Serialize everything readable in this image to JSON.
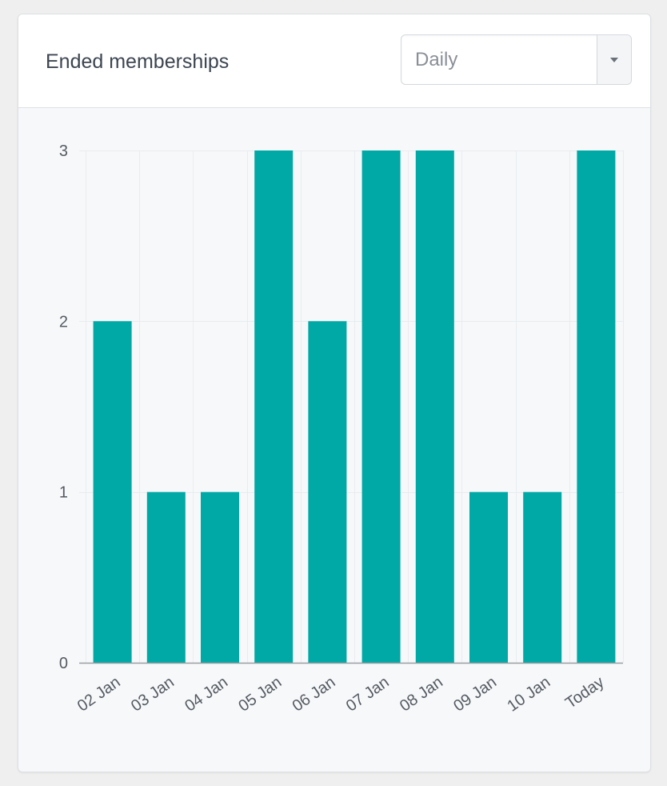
{
  "card": {
    "title": "Ended memberships",
    "period_select": {
      "value": "Daily"
    }
  },
  "colors": {
    "bar": "#00a9a5",
    "grid": "#e9ecef",
    "axis": "#9a9ea3"
  },
  "chart_data": {
    "type": "bar",
    "title": "",
    "xlabel": "",
    "ylabel": "",
    "categories": [
      "02 Jan",
      "03 Jan",
      "04 Jan",
      "05 Jan",
      "06 Jan",
      "07 Jan",
      "08 Jan",
      "09 Jan",
      "10 Jan",
      "Today"
    ],
    "values": [
      2,
      1,
      1,
      3,
      2,
      3,
      3,
      1,
      1,
      3
    ],
    "ylim": [
      0,
      3
    ],
    "yticks": [
      0,
      1,
      2,
      3
    ],
    "grid": true,
    "legend": "none"
  }
}
